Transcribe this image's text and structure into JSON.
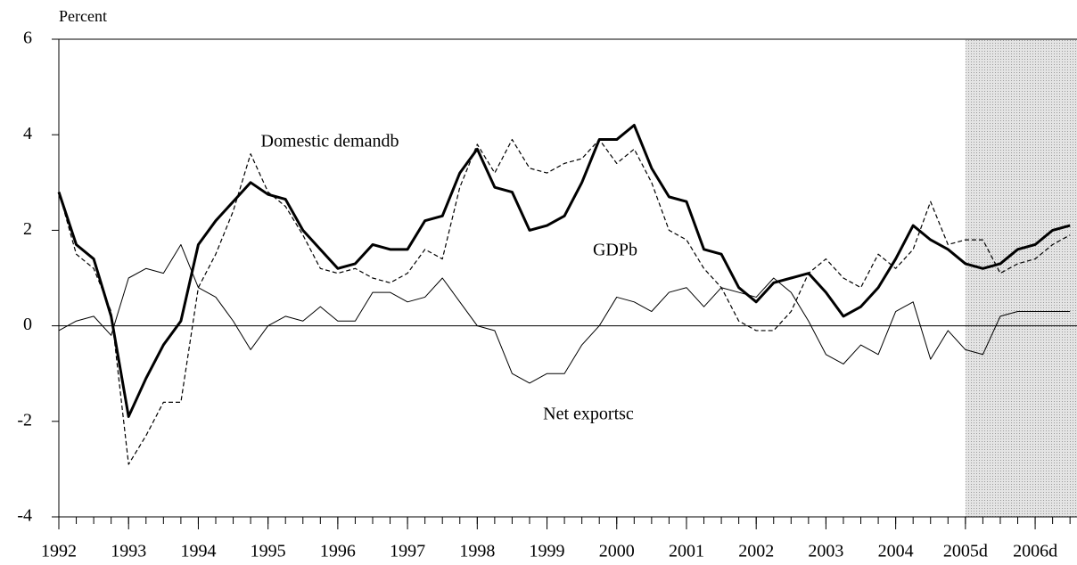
{
  "chart_data": {
    "type": "line",
    "y_label": "Percent",
    "x": [
      1992,
      1992.25,
      1992.5,
      1992.75,
      1993,
      1993.25,
      1993.5,
      1993.75,
      1994,
      1994.25,
      1994.5,
      1994.75,
      1995,
      1995.25,
      1995.5,
      1995.75,
      1996,
      1996.25,
      1996.5,
      1996.75,
      1997,
      1997.25,
      1997.5,
      1997.75,
      1998,
      1998.25,
      1998.5,
      1998.75,
      1999,
      1999.25,
      1999.5,
      1999.75,
      2000,
      2000.25,
      2000.5,
      2000.75,
      2001,
      2001.25,
      2001.5,
      2001.75,
      2002,
      2002.25,
      2002.5,
      2002.75,
      2003,
      2003.25,
      2003.5,
      2003.75,
      2004,
      2004.25,
      2004.5,
      2004.75,
      2005,
      2005.25,
      2005.5,
      2005.75,
      2006,
      2006.25,
      2006.5
    ],
    "series": [
      {
        "name": "GDPb",
        "color": "#000000",
        "values": [
          2.8,
          1.7,
          1.4,
          0.2,
          -1.9,
          -1.1,
          -0.4,
          0.1,
          1.7,
          2.2,
          2.6,
          3.0,
          2.75,
          2.65,
          2.0,
          1.6,
          1.2,
          1.3,
          1.7,
          1.6,
          1.6,
          2.2,
          2.3,
          3.2,
          3.7,
          2.9,
          2.8,
          2.0,
          2.1,
          2.3,
          3.0,
          3.9,
          3.9,
          4.2,
          3.3,
          2.7,
          2.6,
          1.6,
          1.5,
          0.8,
          0.5,
          0.9,
          1.0,
          1.1,
          0.7,
          0.2,
          0.4,
          0.8,
          1.4,
          2.1,
          1.8,
          1.6,
          1.3,
          1.2,
          1.3,
          1.6,
          1.7,
          2.0,
          2.1
        ]
      },
      {
        "name": "Domestic demandb",
        "color": "#000000",
        "values": [
          2.8,
          1.5,
          1.2,
          0.3,
          -2.9,
          -2.3,
          -1.6,
          -1.6,
          0.8,
          1.5,
          2.4,
          3.6,
          2.8,
          2.5,
          1.9,
          1.2,
          1.1,
          1.2,
          1.0,
          0.9,
          1.1,
          1.6,
          1.4,
          2.9,
          3.8,
          3.2,
          3.9,
          3.3,
          3.2,
          3.4,
          3.5,
          3.9,
          3.4,
          3.7,
          3.0,
          2.0,
          1.8,
          1.2,
          0.8,
          0.1,
          -0.1,
          -0.1,
          0.3,
          1.1,
          1.4,
          1.0,
          0.8,
          1.5,
          1.2,
          1.6,
          2.6,
          1.7,
          1.8,
          1.8,
          1.1,
          1.3,
          1.4,
          1.7,
          1.9
        ]
      },
      {
        "name": "Net exportsc",
        "color": "#000000",
        "values": [
          -0.1,
          0.1,
          0.2,
          -0.2,
          1.0,
          1.2,
          1.1,
          1.7,
          0.8,
          0.6,
          0.1,
          -0.5,
          0.0,
          0.2,
          0.1,
          0.4,
          0.1,
          0.1,
          0.7,
          0.7,
          0.5,
          0.6,
          1.0,
          0.5,
          0.0,
          -0.1,
          -1.0,
          -1.2,
          -1.0,
          -1.0,
          -0.4,
          0.0,
          0.6,
          0.5,
          0.3,
          0.7,
          0.8,
          0.4,
          0.8,
          0.7,
          0.6,
          1.0,
          0.7,
          0.1,
          -0.6,
          -0.8,
          -0.4,
          -0.6,
          0.3,
          0.5,
          -0.7,
          -0.1,
          -0.5,
          -0.6,
          0.2,
          0.3,
          0.3,
          0.3,
          0.3
        ]
      }
    ],
    "xlim": [
      1992,
      2006.6
    ],
    "ylim": [
      -4,
      6
    ],
    "xticks": [
      1992,
      1993,
      1994,
      1995,
      1996,
      1997,
      1998,
      1999,
      2000,
      2001,
      2002,
      2003,
      2004,
      {
        "value": 2005,
        "label": "2005d"
      },
      {
        "value": 2006,
        "label": "2006d"
      }
    ],
    "yticks": [
      -4,
      -2,
      0,
      2,
      4,
      6
    ],
    "shaded_region": [
      2005,
      2006.6
    ]
  }
}
